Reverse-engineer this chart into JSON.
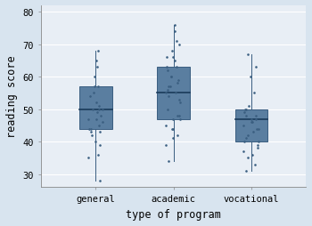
{
  "title": "",
  "xlabel": "type of program",
  "ylabel": "reading score",
  "ylim": [
    26,
    82
  ],
  "yticks": [
    30,
    40,
    50,
    60,
    70,
    80
  ],
  "categories": [
    "general",
    "academic",
    "vocational"
  ],
  "box_color": "#5a7ea0",
  "box_edge_color": "#3a5e80",
  "median_color": "#1a3a5a",
  "whisker_color": "#3a5e80",
  "dot_color": "#3a5e80",
  "background_color": "#d8e4ef",
  "plot_bg_color": "#e8eef5",
  "grid_color": "#ffffff",
  "boxes": [
    {
      "q1": 44,
      "median": 50,
      "q3": 57,
      "whislo": 28,
      "whishi": 68
    },
    {
      "q1": 47,
      "median": 55,
      "q3": 63,
      "whislo": 34,
      "whishi": 76
    },
    {
      "q1": 40,
      "median": 47,
      "q3": 50,
      "whislo": 31,
      "whishi": 67
    }
  ],
  "scatter_points": {
    "general": [
      28,
      35,
      36,
      39,
      40,
      42,
      43,
      43,
      44,
      44,
      45,
      46,
      47,
      47,
      48,
      49,
      50,
      50,
      50,
      51,
      52,
      54,
      55,
      57,
      57,
      60,
      63,
      65,
      68
    ],
    "academic": [
      34,
      39,
      41,
      42,
      44,
      44,
      45,
      47,
      47,
      48,
      48,
      50,
      52,
      53,
      54,
      55,
      55,
      56,
      57,
      57,
      58,
      59,
      60,
      60,
      62,
      63,
      63,
      65,
      66,
      66,
      68,
      70,
      71,
      74,
      76
    ],
    "vocational": [
      31,
      33,
      35,
      36,
      37,
      38,
      39,
      40,
      40,
      41,
      42,
      43,
      44,
      44,
      45,
      46,
      46,
      47,
      47,
      48,
      48,
      49,
      50,
      50,
      51,
      55,
      60,
      63,
      67
    ]
  },
  "box_width": 0.42,
  "xlim": [
    0.3,
    3.7
  ],
  "font_family": "monospace",
  "tick_fontsize": 7.5,
  "label_fontsize": 8.5
}
